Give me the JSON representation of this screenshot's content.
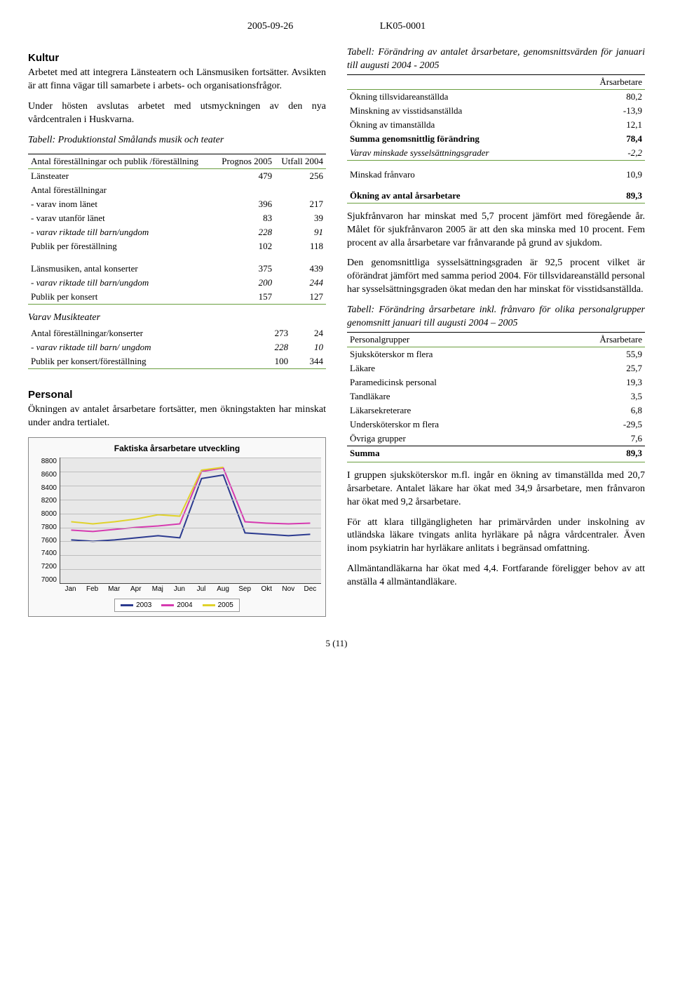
{
  "header": {
    "date": "2005-09-26",
    "ref": "LK05-0001"
  },
  "left": {
    "kultur_heading": "Kultur",
    "kultur_p1": "Arbetet med att integrera Länsteatern och Länsmusiken fortsätter. Avsikten är att finna vägar till samarbete i arbets- och organisationsfrågor.",
    "kultur_p2": "Under hösten avslutas arbetet med utsmyckningen av den nya vårdcentralen i Huskvarna.",
    "table1_caption": "Tabell: Produktionstal Smålands musik och teater",
    "table1": {
      "col0": "Antal föreställningar och publik /föreställning",
      "col1": "Prognos 2005",
      "col2": "Utfall 2004",
      "rows": [
        {
          "label": "Länsteater",
          "c1": "479",
          "c2": "256",
          "style": ""
        },
        {
          "label": "Antal föreställningar",
          "c1": "",
          "c2": "",
          "style": ""
        },
        {
          "label": "- varav inom länet",
          "c1": "396",
          "c2": "217",
          "style": ""
        },
        {
          "label": "- varav utanför länet",
          "c1": "83",
          "c2": "39",
          "style": ""
        },
        {
          "label": "- varav riktade till barn/ungdom",
          "c1": "228",
          "c2": "91",
          "style": "italic"
        },
        {
          "label": "Publik per föreställning",
          "c1": "102",
          "c2": "118",
          "style": ""
        },
        {
          "label": "",
          "c1": "",
          "c2": "",
          "style": "gap"
        },
        {
          "label": "Länsmusiken, antal konserter",
          "c1": "375",
          "c2": "439",
          "style": ""
        },
        {
          "label": "- varav riktade till barn/ungdom",
          "c1": "200",
          "c2": "244",
          "style": "italic"
        },
        {
          "label": "Publik per konsert",
          "c1": "157",
          "c2": "127",
          "style": ""
        }
      ],
      "section2_hdr": "Varav Musikteater",
      "section2_rows": [
        {
          "label": "Antal föreställningar/konserter",
          "c1": "273",
          "c2": "24"
        },
        {
          "label": "- varav riktade till barn/ ungdom",
          "c1": "228",
          "c2": "10",
          "style": "italic"
        },
        {
          "label": "Publik per konsert/föreställning",
          "c1": "100",
          "c2": "344"
        }
      ]
    },
    "personal_heading": "Personal",
    "personal_p1": "Ökningen av antalet årsarbetare fortsätter, men ökningstakten har minskat under andra tertialet.",
    "chart": {
      "title": "Faktiska årsarbetare utveckling",
      "ylim": [
        7000,
        8800
      ],
      "ytick_step": 200,
      "categories": [
        "Jan",
        "Feb",
        "Mar",
        "Apr",
        "Maj",
        "Jun",
        "Jul",
        "Aug",
        "Sep",
        "Okt",
        "Nov",
        "Dec"
      ],
      "series": [
        {
          "name": "2003",
          "color": "#2b3a8f",
          "values": [
            7620,
            7600,
            7620,
            7650,
            7680,
            7650,
            8500,
            8550,
            7720,
            7700,
            7680,
            7700
          ]
        },
        {
          "name": "2004",
          "color": "#d63ab0",
          "values": [
            7760,
            7740,
            7770,
            7800,
            7820,
            7850,
            8600,
            8650,
            7880,
            7860,
            7850,
            7860
          ]
        },
        {
          "name": "2005",
          "color": "#e0d22b",
          "values": [
            7880,
            7850,
            7880,
            7920,
            7980,
            7960,
            8620,
            8660
          ]
        }
      ],
      "background": "#e8e8e8",
      "grid_color": "#bdbdbd",
      "line_width": 2
    }
  },
  "right": {
    "table2_caption": "Tabell: Förändring av antalet årsarbetare, genomsnittsvärden för januari till augusti 2004 - 2005",
    "table2": {
      "colR": "Årsarbetare",
      "rows": [
        {
          "label": "Ökning tillsvidareanställda",
          "val": "80,2"
        },
        {
          "label": "Minskning av visstidsanställda",
          "val": "-13,9"
        },
        {
          "label": "Ökning av timanställda",
          "val": "12,1"
        },
        {
          "label": "Summa genomsnittlig förändring",
          "val": "78,4",
          "style": "bold"
        },
        {
          "label": "Varav minskade sysselsättningsgrader",
          "val": "-2,2",
          "style": "italic end"
        },
        {
          "label": "",
          "val": "",
          "style": "gap"
        },
        {
          "label": "Minskad frånvaro",
          "val": "10,9"
        },
        {
          "label": "",
          "val": "",
          "style": "gap"
        },
        {
          "label": "Ökning av antal årsarbetare",
          "val": "89,3",
          "style": "bold end"
        }
      ]
    },
    "p1": "Sjukfrånvaron har minskat med 5,7 procent jämfört med föregående år. Målet för sjukfrånvaron 2005 är att den ska minska med 10 procent. Fem procent av alla årsarbetare var frånvarande på grund av sjukdom.",
    "p2": "Den genomsnittliga sysselsättningsgraden är 92,5 procent vilket är oförändrat jämfört med samma period 2004. För tillsvidareanställd personal har sysselsättningsgraden ökat medan den har minskat för visstidsanställda.",
    "table3_caption": "Tabell: Förändring årsarbetare inkl. frånvaro för olika personalgrupper genomsnitt januari till augusti 2004 – 2005",
    "table3": {
      "col0": "Personalgrupper",
      "col1": "Årsarbetare",
      "rows": [
        {
          "label": "Sjuksköterskor m flera",
          "val": "55,9"
        },
        {
          "label": "Läkare",
          "val": "25,7"
        },
        {
          "label": "Paramedicinsk personal",
          "val": "19,3"
        },
        {
          "label": "Tandläkare",
          "val": "3,5"
        },
        {
          "label": "Läkarsekreterare",
          "val": "6,8"
        },
        {
          "label": "Undersköterskor m flera",
          "val": "-29,5"
        },
        {
          "label": "Övriga grupper",
          "val": "7,6"
        }
      ],
      "sum_label": "Summa",
      "sum_val": "89,3"
    },
    "p3": "I gruppen sjuksköterskor m.fl. ingår en ökning av timanställda med 20,7 årsarbetare. Antalet läkare har ökat med 34,9 årsarbetare, men frånvaron har ökat med 9,2 årsarbetare.",
    "p4": "För att klara tillgängligheten har primärvården under inskolning av utländska läkare tvingats anlita hyrläkare på några vårdcentraler. Även inom psykiatrin har hyrläkare anlitats i begränsad omfattning.",
    "p5": "Allmäntandläkarna har ökat med 4,4. Fortfarande föreligger behov av att anställa 4 allmäntandläkare."
  },
  "footer": "5 (11)"
}
